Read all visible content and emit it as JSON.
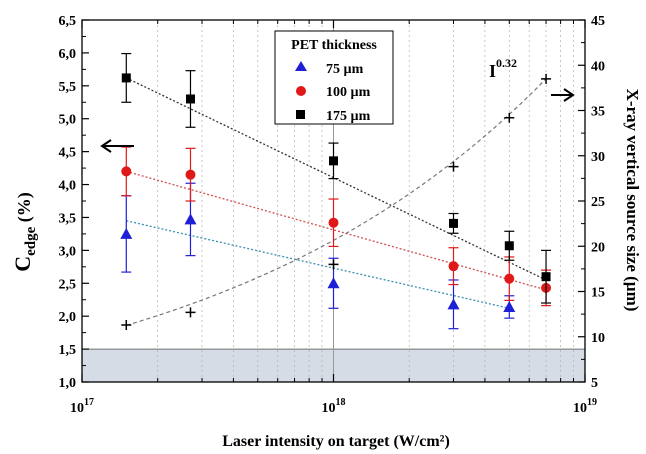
{
  "chart_data": {
    "type": "scatter",
    "x_scale": "log",
    "xlim": [
      1e+17,
      1e+19
    ],
    "ylim_left": [
      1.0,
      6.5
    ],
    "ylim_right": [
      5,
      45
    ],
    "xlabel": "Laser intensity on target (W/cm²)",
    "ylabel_left_main": "C",
    "ylabel_left_sub": "edge",
    "ylabel_left_unit": " (%)",
    "ylabel_right": "X-ray vertical source size (µm)",
    "x_ticks": [
      {
        "value": 1e+17,
        "base": "10",
        "exp": "17"
      },
      {
        "value": 1e+18,
        "base": "10",
        "exp": "18"
      },
      {
        "value": 1e+19,
        "base": "10",
        "exp": "19"
      }
    ],
    "y_left_ticks": [
      "1,0",
      "1,5",
      "2,0",
      "2,5",
      "3,0",
      "3,5",
      "4,0",
      "4,5",
      "5,0",
      "5,5",
      "6,0",
      "6,5"
    ],
    "y_left_tick_values": [
      1.0,
      1.5,
      2.0,
      2.5,
      3.0,
      3.5,
      4.0,
      4.5,
      5.0,
      5.5,
      6.0,
      6.5
    ],
    "y_right_ticks": [
      "5",
      "10",
      "15",
      "20",
      "25",
      "30",
      "35",
      "40",
      "45"
    ],
    "y_right_tick_values": [
      5,
      10,
      15,
      20,
      25,
      30,
      35,
      40,
      45
    ],
    "shaded_band_left": [
      1.0,
      1.5
    ],
    "grid": "vertical minor dotted",
    "legend": {
      "title": "PET thickness",
      "position": "top-center",
      "entries": [
        "75 µm",
        "100 µm",
        "175 µm"
      ]
    },
    "series": [
      {
        "name": "75 µm",
        "axis": "left",
        "marker": "triangle",
        "color": "#1f1fd6",
        "x": [
          1.5e+17,
          2.7e+17,
          1e+18,
          3e+18,
          5e+18
        ],
        "y": [
          3.25,
          3.47,
          2.5,
          2.18,
          2.14
        ],
        "err": [
          0.58,
          0.55,
          0.38,
          0.37,
          0.17
        ],
        "fit": {
          "color": "#3a8fb0",
          "x": [
            1.5e+17,
            5e+18
          ],
          "y": [
            3.45,
            2.12
          ]
        }
      },
      {
        "name": "100 µm",
        "axis": "left",
        "marker": "circle",
        "color": "#e01818",
        "x": [
          1.5e+17,
          2.7e+17,
          1e+18,
          3e+18,
          5e+18,
          7e+18
        ],
        "y": [
          4.2,
          4.15,
          3.42,
          2.76,
          2.57,
          2.43
        ],
        "err": [
          0.37,
          0.4,
          0.36,
          0.28,
          0.33,
          0.27
        ],
        "fit": {
          "color": "#d05050",
          "x": [
            1.5e+17,
            7e+18
          ],
          "y": [
            4.2,
            2.4
          ]
        }
      },
      {
        "name": "175 µm",
        "axis": "left",
        "marker": "square",
        "color": "#000000",
        "x": [
          1.5e+17,
          2.7e+17,
          1e+18,
          3e+18,
          5e+18,
          7e+18
        ],
        "y": [
          5.62,
          5.3,
          4.36,
          3.41,
          3.07,
          2.6
        ],
        "err": [
          0.37,
          0.43,
          0.27,
          0.15,
          0.22,
          0.4
        ],
        "fit": {
          "color": "#333333",
          "x": [
            1.5e+17,
            7e+18
          ],
          "y": [
            5.62,
            2.55
          ]
        }
      },
      {
        "name": "",
        "axis": "right",
        "marker": "plus",
        "color": "#000000",
        "x": [
          1.5e+17,
          2.7e+17,
          1e+18,
          3e+18,
          5e+18,
          7e+18
        ],
        "y": [
          11.3,
          12.7,
          18.0,
          28.8,
          34.2,
          38.5
        ],
        "err": [],
        "fit": {
          "color": "#777777",
          "power": 0.32,
          "x": [
            1.5e+17,
            7e+18
          ],
          "y_at_xmax": 38.5
        }
      }
    ],
    "annotations": [
      {
        "name": "power-law-label",
        "base": "I",
        "exp": "0.32"
      },
      {
        "name": "left-arrow",
        "direction": "left",
        "points_to": "left axis"
      },
      {
        "name": "right-arrow",
        "direction": "right",
        "points_to": "right axis"
      }
    ]
  }
}
